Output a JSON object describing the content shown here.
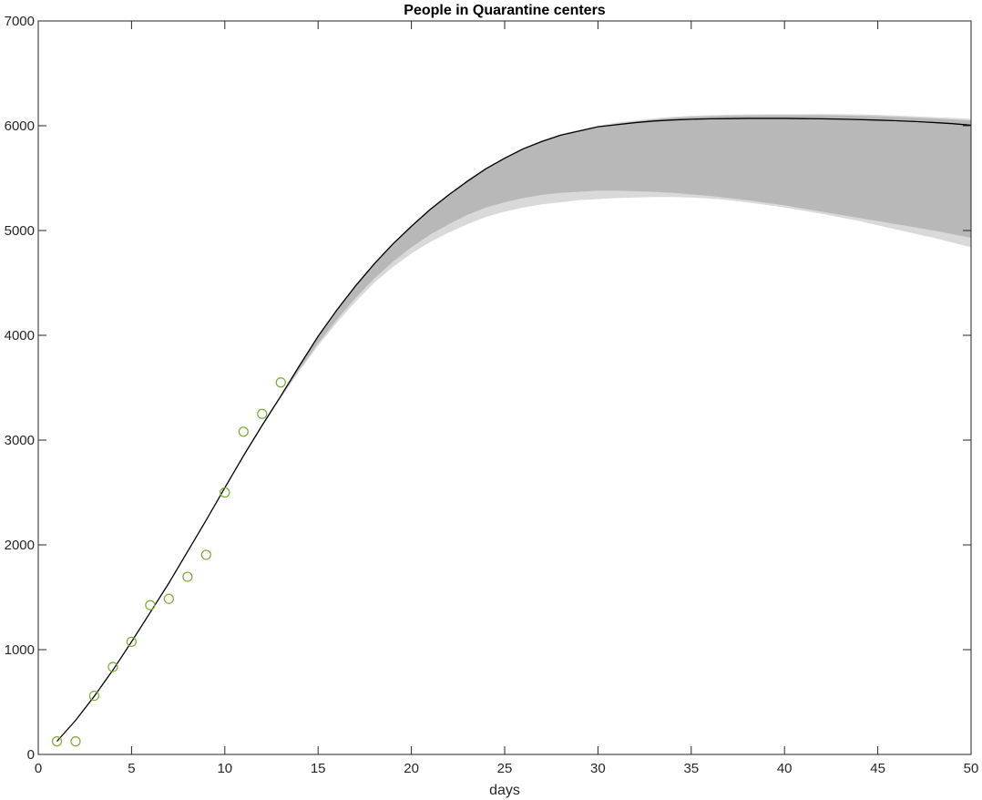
{
  "chart_data": {
    "type": "line",
    "title": "People in Quarantine centers",
    "xlabel": "days",
    "ylabel": "",
    "xlim": [
      0,
      50
    ],
    "ylim": [
      0,
      7000
    ],
    "xticks": [
      0,
      5,
      10,
      15,
      20,
      25,
      30,
      35,
      40,
      45,
      50
    ],
    "yticks": [
      0,
      1000,
      2000,
      3000,
      4000,
      5000,
      6000,
      7000
    ],
    "grid": false,
    "legend": "none",
    "series": [
      {
        "kind": "band-outer",
        "color": "#d9d9d9",
        "x": [
          1,
          2,
          3,
          4,
          5,
          6,
          7,
          8,
          9,
          10,
          11,
          12,
          13,
          14,
          15,
          16,
          17,
          18,
          19,
          20,
          21,
          22,
          23,
          24,
          25,
          26,
          27,
          28,
          29,
          30,
          31,
          32,
          33,
          34,
          35,
          36,
          37,
          38,
          39,
          40,
          41,
          42,
          43,
          44,
          45,
          46,
          47,
          48,
          49,
          50
        ],
        "upper": [
          130,
          330,
          560,
          810,
          1080,
          1360,
          1640,
          1940,
          2240,
          2550,
          2860,
          3150,
          3430,
          3720,
          4000,
          4250,
          4480,
          4690,
          4880,
          5050,
          5210,
          5350,
          5480,
          5600,
          5700,
          5790,
          5860,
          5920,
          5960,
          6000,
          6030,
          6050,
          6070,
          6085,
          6095,
          6100,
          6105,
          6108,
          6110,
          6110,
          6110,
          6112,
          6110,
          6108,
          6103,
          6097,
          6090,
          6082,
          6075,
          6065
        ],
        "lower": [
          120,
          320,
          550,
          800,
          1070,
          1350,
          1630,
          1930,
          2230,
          2540,
          2840,
          3130,
          3400,
          3660,
          3900,
          4120,
          4320,
          4500,
          4650,
          4780,
          4890,
          4980,
          5060,
          5130,
          5180,
          5220,
          5250,
          5270,
          5290,
          5300,
          5310,
          5315,
          5320,
          5320,
          5315,
          5305,
          5290,
          5270,
          5245,
          5220,
          5190,
          5160,
          5125,
          5090,
          5050,
          5010,
          4970,
          4930,
          4885,
          4840
        ]
      },
      {
        "kind": "band-inner",
        "color": "#b8b8b8",
        "x": [
          1,
          2,
          3,
          4,
          5,
          6,
          7,
          8,
          9,
          10,
          11,
          12,
          13,
          14,
          15,
          16,
          17,
          18,
          19,
          20,
          21,
          22,
          23,
          24,
          25,
          26,
          27,
          28,
          29,
          30,
          31,
          32,
          33,
          34,
          35,
          36,
          37,
          38,
          39,
          40,
          41,
          42,
          43,
          44,
          45,
          46,
          47,
          48,
          49,
          50
        ],
        "upper": [
          128,
          328,
          558,
          808,
          1078,
          1358,
          1638,
          1938,
          2238,
          2548,
          2855,
          3145,
          3425,
          3712,
          3990,
          4240,
          4470,
          4680,
          4870,
          5040,
          5200,
          5340,
          5470,
          5590,
          5690,
          5780,
          5850,
          5910,
          5950,
          5990,
          6020,
          6040,
          6060,
          6075,
          6085,
          6090,
          6095,
          6098,
          6100,
          6100,
          6100,
          6100,
          6098,
          6095,
          6090,
          6084,
          6077,
          6069,
          6060,
          6050
        ],
        "lower": [
          122,
          322,
          552,
          802,
          1072,
          1352,
          1632,
          1932,
          2232,
          2542,
          2845,
          3135,
          3410,
          3675,
          3925,
          4150,
          4355,
          4540,
          4700,
          4840,
          4960,
          5060,
          5150,
          5220,
          5270,
          5310,
          5340,
          5360,
          5370,
          5380,
          5380,
          5375,
          5370,
          5360,
          5345,
          5330,
          5310,
          5290,
          5265,
          5240,
          5210,
          5180,
          5150,
          5120,
          5090,
          5060,
          5030,
          5000,
          4965,
          4930
        ]
      },
      {
        "kind": "line",
        "color": "#000000",
        "x": [
          1,
          2,
          3,
          4,
          5,
          6,
          7,
          8,
          9,
          10,
          11,
          12,
          13,
          14,
          15,
          16,
          17,
          18,
          19,
          20,
          21,
          22,
          23,
          24,
          25,
          26,
          27,
          28,
          29,
          30,
          31,
          32,
          33,
          34,
          35,
          36,
          37,
          38,
          39,
          40,
          41,
          42,
          43,
          44,
          45,
          46,
          47,
          48,
          49,
          50
        ],
        "y": [
          125,
          325,
          555,
          805,
          1075,
          1355,
          1635,
          1935,
          2235,
          2545,
          2850,
          3140,
          3420,
          3710,
          3990,
          4240,
          4470,
          4680,
          4870,
          5040,
          5200,
          5340,
          5470,
          5590,
          5690,
          5780,
          5850,
          5910,
          5950,
          5990,
          6010,
          6030,
          6045,
          6055,
          6062,
          6066,
          6068,
          6070,
          6070,
          6070,
          6068,
          6066,
          6063,
          6059,
          6054,
          6048,
          6040,
          6031,
          6020,
          6005
        ]
      },
      {
        "kind": "scatter",
        "color": "#77ac30",
        "x": [
          1,
          2,
          3,
          4,
          5,
          6,
          7,
          8,
          9,
          10,
          11,
          12,
          13
        ],
        "y": [
          125,
          125,
          560,
          835,
          1075,
          1425,
          1485,
          1695,
          1905,
          2500,
          3080,
          3250,
          3550
        ]
      }
    ]
  }
}
